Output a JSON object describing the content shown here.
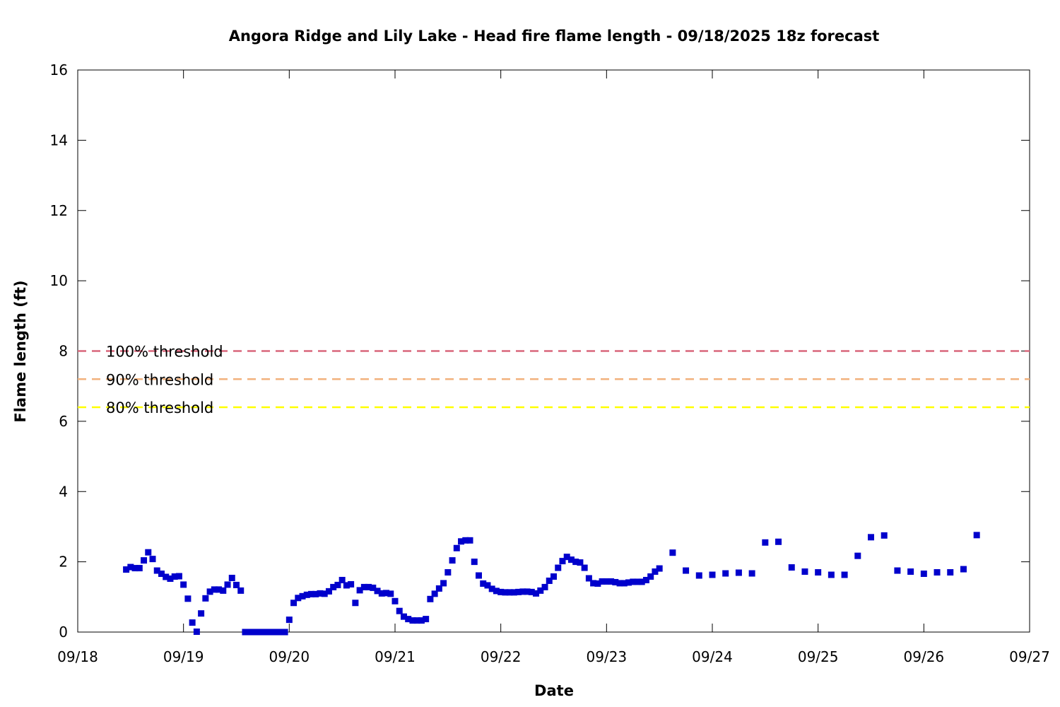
{
  "chart_data": {
    "type": "scatter",
    "title": "Angora Ridge and Lily Lake - Head fire flame length - 09/18/2025 18z forecast",
    "xlabel": "Date",
    "ylabel": "Flame length (ft)",
    "xlim": [
      "2025-09-18T00:00",
      "2025-09-27T00:00"
    ],
    "ylim": [
      0,
      16
    ],
    "x_ticks": [
      "09/18",
      "09/19",
      "09/20",
      "09/21",
      "09/22",
      "09/23",
      "09/24",
      "09/25",
      "09/26",
      "09/27"
    ],
    "y_ticks": [
      0,
      2,
      4,
      6,
      8,
      10,
      12,
      14,
      16
    ],
    "grid": false,
    "marker": "square",
    "point_color": "#0000cc",
    "thresholds": [
      {
        "label": "100% threshold",
        "value": 8.0,
        "color": "#d9677b"
      },
      {
        "label": "90% threshold",
        "value": 7.2,
        "color": "#f2b27e"
      },
      {
        "label": "80% threshold",
        "value": 6.4,
        "color": "#ffff00"
      }
    ],
    "series": [
      {
        "points": [
          [
            "2025-09-18T11:00",
            1.78
          ],
          [
            "2025-09-18T12:00",
            1.85
          ],
          [
            "2025-09-18T13:00",
            1.82
          ],
          [
            "2025-09-18T14:00",
            1.82
          ],
          [
            "2025-09-18T15:00",
            2.04
          ],
          [
            "2025-09-18T16:00",
            2.27
          ],
          [
            "2025-09-18T17:00",
            2.08
          ],
          [
            "2025-09-18T18:00",
            1.75
          ],
          [
            "2025-09-18T19:00",
            1.66
          ],
          [
            "2025-09-18T20:00",
            1.57
          ],
          [
            "2025-09-18T21:00",
            1.52
          ],
          [
            "2025-09-18T22:00",
            1.58
          ],
          [
            "2025-09-18T23:00",
            1.59
          ],
          [
            "2025-09-19T00:00",
            1.35
          ],
          [
            "2025-09-19T01:00",
            0.95
          ],
          [
            "2025-09-19T02:00",
            0.27
          ],
          [
            "2025-09-19T03:00",
            0.01
          ],
          [
            "2025-09-19T04:00",
            0.53
          ],
          [
            "2025-09-19T05:00",
            0.96
          ],
          [
            "2025-09-19T06:00",
            1.15
          ],
          [
            "2025-09-19T07:00",
            1.21
          ],
          [
            "2025-09-19T08:00",
            1.21
          ],
          [
            "2025-09-19T09:00",
            1.18
          ],
          [
            "2025-09-19T10:00",
            1.35
          ],
          [
            "2025-09-19T11:00",
            1.54
          ],
          [
            "2025-09-19T12:00",
            1.34
          ],
          [
            "2025-09-19T13:00",
            1.18
          ],
          [
            "2025-09-19T14:00",
            0.0
          ],
          [
            "2025-09-19T15:00",
            0.0
          ],
          [
            "2025-09-19T16:00",
            0.0
          ],
          [
            "2025-09-19T17:00",
            0.0
          ],
          [
            "2025-09-19T18:00",
            0.0
          ],
          [
            "2025-09-19T19:00",
            0.0
          ],
          [
            "2025-09-19T20:00",
            0.0
          ],
          [
            "2025-09-19T21:00",
            0.0
          ],
          [
            "2025-09-19T22:00",
            0.0
          ],
          [
            "2025-09-19T23:00",
            0.0
          ],
          [
            "2025-09-20T00:00",
            0.35
          ],
          [
            "2025-09-20T01:00",
            0.83
          ],
          [
            "2025-09-20T02:00",
            0.97
          ],
          [
            "2025-09-20T03:00",
            1.02
          ],
          [
            "2025-09-20T04:00",
            1.06
          ],
          [
            "2025-09-20T05:00",
            1.08
          ],
          [
            "2025-09-20T06:00",
            1.08
          ],
          [
            "2025-09-20T07:00",
            1.1
          ],
          [
            "2025-09-20T08:00",
            1.09
          ],
          [
            "2025-09-20T09:00",
            1.16
          ],
          [
            "2025-09-20T10:00",
            1.28
          ],
          [
            "2025-09-20T11:00",
            1.34
          ],
          [
            "2025-09-20T12:00",
            1.48
          ],
          [
            "2025-09-20T13:00",
            1.33
          ],
          [
            "2025-09-20T14:00",
            1.36
          ],
          [
            "2025-09-20T15:00",
            0.83
          ],
          [
            "2025-09-20T16:00",
            1.19
          ],
          [
            "2025-09-20T17:00",
            1.28
          ],
          [
            "2025-09-20T18:00",
            1.28
          ],
          [
            "2025-09-20T19:00",
            1.26
          ],
          [
            "2025-09-20T20:00",
            1.17
          ],
          [
            "2025-09-20T21:00",
            1.1
          ],
          [
            "2025-09-20T22:00",
            1.11
          ],
          [
            "2025-09-20T23:00",
            1.09
          ],
          [
            "2025-09-21T00:00",
            0.88
          ],
          [
            "2025-09-21T01:00",
            0.6
          ],
          [
            "2025-09-21T02:00",
            0.44
          ],
          [
            "2025-09-21T03:00",
            0.37
          ],
          [
            "2025-09-21T04:00",
            0.33
          ],
          [
            "2025-09-21T05:00",
            0.33
          ],
          [
            "2025-09-21T06:00",
            0.33
          ],
          [
            "2025-09-21T07:00",
            0.37
          ],
          [
            "2025-09-21T08:00",
            0.94
          ],
          [
            "2025-09-21T09:00",
            1.09
          ],
          [
            "2025-09-21T10:00",
            1.24
          ],
          [
            "2025-09-21T11:00",
            1.39
          ],
          [
            "2025-09-21T12:00",
            1.7
          ],
          [
            "2025-09-21T13:00",
            2.04
          ],
          [
            "2025-09-21T14:00",
            2.39
          ],
          [
            "2025-09-21T15:00",
            2.58
          ],
          [
            "2025-09-21T16:00",
            2.61
          ],
          [
            "2025-09-21T17:00",
            2.61
          ],
          [
            "2025-09-21T18:00",
            2.0
          ],
          [
            "2025-09-21T19:00",
            1.61
          ],
          [
            "2025-09-21T20:00",
            1.38
          ],
          [
            "2025-09-21T21:00",
            1.33
          ],
          [
            "2025-09-21T22:00",
            1.23
          ],
          [
            "2025-09-21T23:00",
            1.17
          ],
          [
            "2025-09-22T00:00",
            1.14
          ],
          [
            "2025-09-22T01:00",
            1.13
          ],
          [
            "2025-09-22T02:00",
            1.13
          ],
          [
            "2025-09-22T03:00",
            1.13
          ],
          [
            "2025-09-22T04:00",
            1.14
          ],
          [
            "2025-09-22T05:00",
            1.15
          ],
          [
            "2025-09-22T06:00",
            1.15
          ],
          [
            "2025-09-22T07:00",
            1.14
          ],
          [
            "2025-09-22T08:00",
            1.1
          ],
          [
            "2025-09-22T09:00",
            1.18
          ],
          [
            "2025-09-22T10:00",
            1.28
          ],
          [
            "2025-09-22T11:00",
            1.46
          ],
          [
            "2025-09-22T12:00",
            1.58
          ],
          [
            "2025-09-22T13:00",
            1.83
          ],
          [
            "2025-09-22T14:00",
            2.02
          ],
          [
            "2025-09-22T15:00",
            2.14
          ],
          [
            "2025-09-22T16:00",
            2.06
          ],
          [
            "2025-09-22T17:00",
            2.0
          ],
          [
            "2025-09-22T18:00",
            1.98
          ],
          [
            "2025-09-22T19:00",
            1.83
          ],
          [
            "2025-09-22T20:00",
            1.53
          ],
          [
            "2025-09-22T21:00",
            1.39
          ],
          [
            "2025-09-22T22:00",
            1.38
          ],
          [
            "2025-09-22T23:00",
            1.44
          ],
          [
            "2025-09-23T00:00",
            1.44
          ],
          [
            "2025-09-23T01:00",
            1.44
          ],
          [
            "2025-09-23T02:00",
            1.42
          ],
          [
            "2025-09-23T03:00",
            1.39
          ],
          [
            "2025-09-23T04:00",
            1.39
          ],
          [
            "2025-09-23T05:00",
            1.41
          ],
          [
            "2025-09-23T06:00",
            1.43
          ],
          [
            "2025-09-23T07:00",
            1.43
          ],
          [
            "2025-09-23T08:00",
            1.43
          ],
          [
            "2025-09-23T09:00",
            1.48
          ],
          [
            "2025-09-23T10:00",
            1.58
          ],
          [
            "2025-09-23T11:00",
            1.72
          ],
          [
            "2025-09-23T12:00",
            1.81
          ],
          [
            "2025-09-23T15:00",
            2.26
          ],
          [
            "2025-09-23T18:00",
            1.75
          ],
          [
            "2025-09-23T21:00",
            1.61
          ],
          [
            "2025-09-24T00:00",
            1.63
          ],
          [
            "2025-09-24T03:00",
            1.67
          ],
          [
            "2025-09-24T06:00",
            1.69
          ],
          [
            "2025-09-24T09:00",
            1.67
          ],
          [
            "2025-09-24T12:00",
            2.55
          ],
          [
            "2025-09-24T15:00",
            2.57
          ],
          [
            "2025-09-24T18:00",
            1.84
          ],
          [
            "2025-09-24T21:00",
            1.72
          ],
          [
            "2025-09-25T00:00",
            1.7
          ],
          [
            "2025-09-25T03:00",
            1.63
          ],
          [
            "2025-09-25T06:00",
            1.63
          ],
          [
            "2025-09-25T09:00",
            2.17
          ],
          [
            "2025-09-25T12:00",
            2.7
          ],
          [
            "2025-09-25T15:00",
            2.75
          ],
          [
            "2025-09-25T18:00",
            1.75
          ],
          [
            "2025-09-25T21:00",
            1.72
          ],
          [
            "2025-09-26T00:00",
            1.66
          ],
          [
            "2025-09-26T03:00",
            1.7
          ],
          [
            "2025-09-26T06:00",
            1.7
          ],
          [
            "2025-09-26T09:00",
            1.79
          ],
          [
            "2025-09-26T12:00",
            2.76
          ]
        ]
      }
    ]
  }
}
